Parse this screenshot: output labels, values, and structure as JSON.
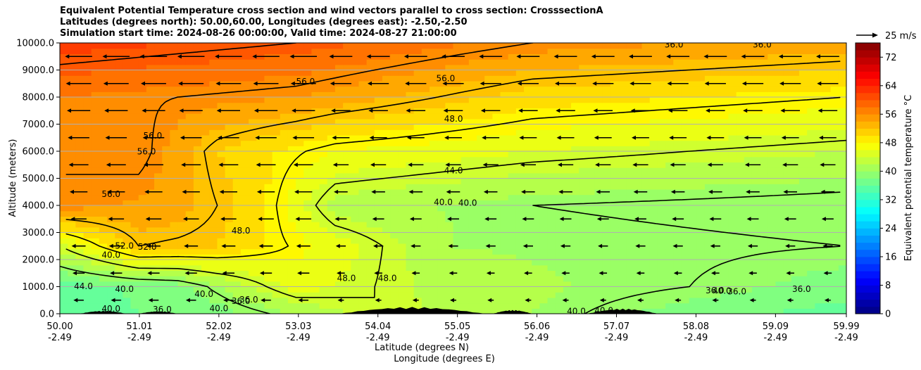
{
  "chart_data": {
    "type": "heatmap",
    "title_lines": [
      "Equivalent Potential Temperature cross section and wind vectors parallel to cross section: CrosssectionA",
      "Latitudes (degrees north): 50.00,60.00, Longitudes (degrees east): -2.50,-2.50",
      "Simulation start time: 2024-08-26 00:00:00, Valid time: 2024-08-27 21:00:00"
    ],
    "ylabel": "Altitude (meters)",
    "xlabel_lines": [
      "Latitude (degrees N)",
      "Longitude (degrees E)"
    ],
    "ylim": [
      0,
      10000
    ],
    "xlim": [
      50.0,
      59.99
    ],
    "y_ticks": [
      0,
      1000,
      2000,
      3000,
      4000,
      5000,
      6000,
      7000,
      8000,
      9000,
      10000
    ],
    "y_tick_labels": [
      "0.0",
      "1000.0",
      "2000.0",
      "3000.0",
      "4000.0",
      "5000.0",
      "6000.0",
      "7000.0",
      "8000.0",
      "9000.0",
      "10000.0"
    ],
    "x_ticks": [
      50.0,
      51.01,
      52.02,
      53.03,
      54.04,
      55.05,
      56.06,
      57.07,
      58.08,
      59.09,
      59.99
    ],
    "x_tick_labels_lat": [
      "50.00",
      "51.01",
      "52.02",
      "53.03",
      "54.04",
      "55.05",
      "56.06",
      "57.07",
      "58.08",
      "59.09",
      "59.99"
    ],
    "x_tick_labels_lon": [
      "-2.49",
      "-2.49",
      "-2.49",
      "-2.49",
      "-2.49",
      "-2.49",
      "-2.49",
      "-2.49",
      "-2.49",
      "-2.49",
      "-2.49"
    ],
    "colorbar": {
      "label": "Equivalent potential temperature $^\\circ$C",
      "label_display": "Equivalent potential temperature °C",
      "range": [
        0,
        76
      ],
      "ticks": [
        0,
        8,
        16,
        24,
        32,
        40,
        48,
        56,
        64,
        72
      ],
      "colormap": "jet"
    },
    "quiver_key": {
      "label": "25 m/s",
      "speed": 25
    },
    "contour_labels": [
      {
        "text": "56.0",
        "x": 53.12,
        "y": 8560
      },
      {
        "text": "56.0",
        "x": 54.9,
        "y": 8680
      },
      {
        "text": "56.0",
        "x": 51.18,
        "y": 6560
      },
      {
        "text": "56.0",
        "x": 51.1,
        "y": 5980
      },
      {
        "text": "56.0",
        "x": 50.65,
        "y": 4400
      },
      {
        "text": "48.0",
        "x": 55.0,
        "y": 7180
      },
      {
        "text": "44.0",
        "x": 55.0,
        "y": 5270
      },
      {
        "text": "40.0",
        "x": 54.87,
        "y": 4100
      },
      {
        "text": "40.0",
        "x": 55.18,
        "y": 4080
      },
      {
        "text": "48.0",
        "x": 52.3,
        "y": 3050
      },
      {
        "text": "52.0",
        "x": 50.82,
        "y": 2500
      },
      {
        "text": "52.0",
        "x": 51.11,
        "y": 2450
      },
      {
        "text": "40.0",
        "x": 50.65,
        "y": 2150
      },
      {
        "text": "48.0",
        "x": 53.64,
        "y": 1300
      },
      {
        "text": "48.0",
        "x": 54.16,
        "y": 1300
      },
      {
        "text": "44.0",
        "x": 50.3,
        "y": 1000
      },
      {
        "text": "40.0",
        "x": 50.82,
        "y": 900
      },
      {
        "text": "40.0",
        "x": 51.83,
        "y": 720
      },
      {
        "text": "36.0",
        "x": 52.3,
        "y": 450
      },
      {
        "text": "36.0",
        "x": 52.4,
        "y": 510
      },
      {
        "text": "36.0",
        "x": 51.3,
        "y": 140
      },
      {
        "text": "40.0",
        "x": 50.65,
        "y": 170
      },
      {
        "text": "40.0",
        "x": 52.02,
        "y": 180
      },
      {
        "text": "40.0",
        "x": 56.56,
        "y": 80
      },
      {
        "text": "40.0",
        "x": 56.91,
        "y": 100
      },
      {
        "text": "36.0",
        "x": 58.32,
        "y": 850
      },
      {
        "text": "40.0",
        "x": 58.41,
        "y": 830
      },
      {
        "text": "36.0",
        "x": 58.6,
        "y": 800
      },
      {
        "text": "36.0",
        "x": 59.42,
        "y": 900
      },
      {
        "text": "36.0",
        "x": 57.8,
        "y": 9920
      },
      {
        "text": "36.0",
        "x": 58.92,
        "y": 9920
      }
    ],
    "theta_field_rows": [
      {
        "y": 10000,
        "x": [
          50.0,
          53.0,
          56.0,
          59.99
        ],
        "v": [
          62,
          60,
          56,
          54
        ]
      },
      {
        "y": 8000,
        "x": [
          50.0,
          53.0,
          56.0,
          59.99
        ],
        "v": [
          57,
          55,
          50,
          48
        ]
      },
      {
        "y": 6000,
        "x": [
          50.0,
          51.0,
          52.0,
          53.5,
          56.0,
          59.99
        ],
        "v": [
          56,
          57,
          51,
          47,
          45,
          43
        ]
      },
      {
        "y": 4000,
        "x": [
          50.0,
          51.5,
          52.5,
          53.5,
          56.0,
          59.99
        ],
        "v": [
          56,
          54,
          50,
          42,
          40,
          39
        ]
      },
      {
        "y": 2500,
        "x": [
          50.0,
          51.0,
          52.0,
          53.5,
          55.0,
          59.99
        ],
        "v": [
          44,
          52,
          51,
          46,
          41,
          40
        ]
      },
      {
        "y": 1000,
        "x": [
          50.0,
          51.5,
          53.0,
          55.0,
          58.0,
          59.99
        ],
        "v": [
          36,
          38,
          46,
          42,
          40,
          38
        ]
      },
      {
        "y": 0,
        "x": [
          50.0,
          52.0,
          54.0,
          56.0,
          58.0,
          59.99
        ],
        "v": [
          36,
          38,
          44,
          41,
          38,
          36
        ]
      }
    ]
  }
}
